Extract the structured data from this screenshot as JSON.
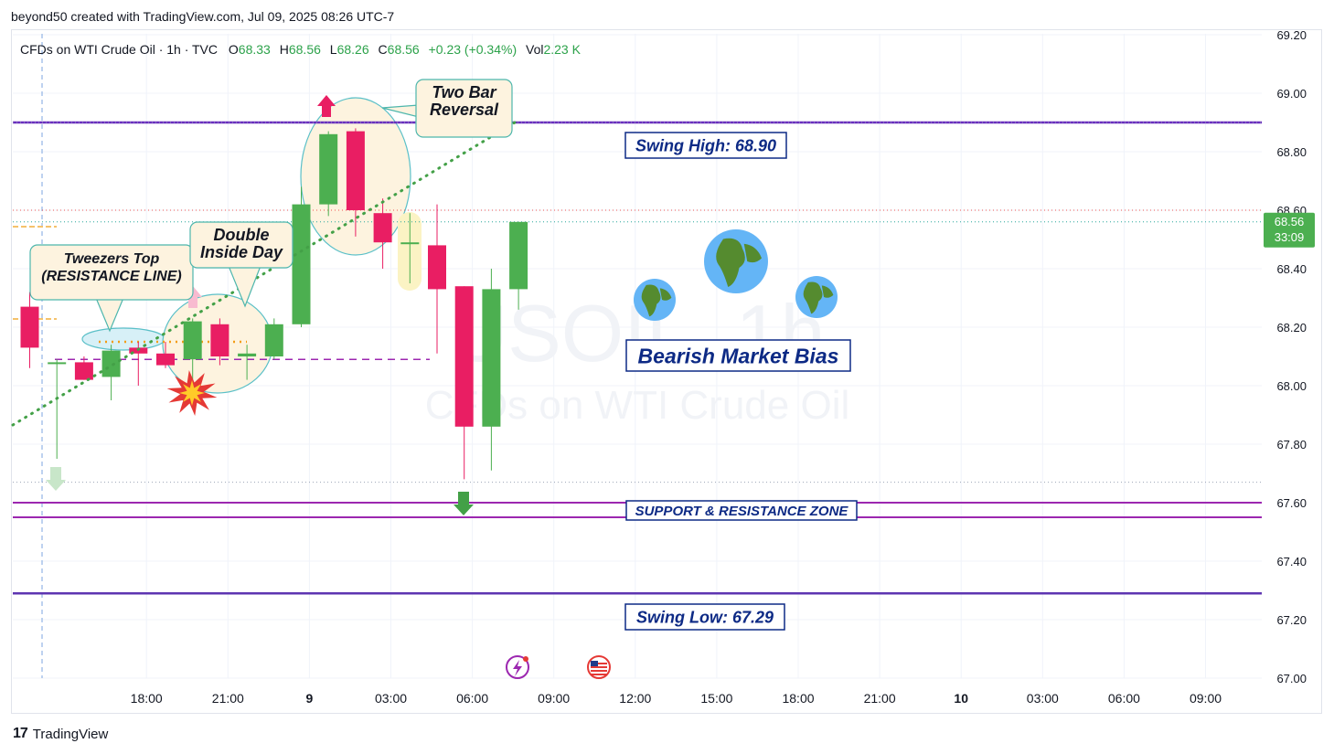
{
  "header": {
    "publisher": "beyond50 created with TradingView.com, Jul 09, 2025 08:26 UTC-7"
  },
  "legend": {
    "symbol": "CFDs on WTI Crude Oil · 1h · TVC",
    "o_label": "O",
    "o_value": "68.33",
    "h_label": "H",
    "h_value": "68.56",
    "l_label": "L",
    "l_value": "68.26",
    "c_label": "C",
    "c_value": "68.56",
    "change": "+0.23 (+0.34%)",
    "vol_label": "Vol",
    "vol_value": "2.23 K"
  },
  "watermark": {
    "symbol": "USOIL, 1h",
    "name": "CFDs on WTI Crude Oil"
  },
  "price_tag": {
    "price": "68.56",
    "countdown": "33:09"
  },
  "footer": {
    "brand": "TradingView",
    "logo": "17"
  },
  "annotations": {
    "tweezers": "Tweezers Top\n(RESISTANCE LINE)",
    "double_inside": "Double\nInside Day",
    "two_bar": "Two Bar\nReversal",
    "swing_high": "Swing High: 68.90",
    "bias": "Bearish Market Bias",
    "sr_zone": "SUPPORT & RESISTANCE ZONE",
    "swing_low": "Swing Low: 67.29"
  },
  "colors": {
    "up": "#4caf50",
    "down": "#e91e63",
    "purple": "#7b2fb5",
    "navy": "#0d2a85",
    "grid": "#f0f3fa"
  },
  "chart_data": {
    "type": "candlestick",
    "title": "CFDs on WTI Crude Oil · 1h · TVC",
    "ylim": [
      67.0,
      69.2
    ],
    "y_ticks": [
      "67.00",
      "67.20",
      "67.40",
      "67.60",
      "67.80",
      "68.00",
      "68.20",
      "68.40",
      "68.60",
      "68.80",
      "69.00",
      "69.20"
    ],
    "x_ticks": [
      {
        "i": 4.3,
        "label": "18:00"
      },
      {
        "i": 7.3,
        "label": "21:00"
      },
      {
        "i": 10.3,
        "label": "9"
      },
      {
        "i": 13.3,
        "label": "03:00"
      },
      {
        "i": 16.3,
        "label": "06:00"
      },
      {
        "i": 19.3,
        "label": "09:00"
      },
      {
        "i": 22.3,
        "label": "12:00"
      },
      {
        "i": 25.3,
        "label": "15:00"
      },
      {
        "i": 28.3,
        "label": "18:00"
      },
      {
        "i": 31.3,
        "label": "21:00"
      },
      {
        "i": 34.3,
        "label": "10"
      },
      {
        "i": 37.3,
        "label": "03:00"
      },
      {
        "i": 40.3,
        "label": "06:00"
      },
      {
        "i": 43.3,
        "label": "09:00"
      }
    ],
    "candles": [
      {
        "o": 68.27,
        "h": 68.32,
        "l": 68.06,
        "c": 68.13
      },
      {
        "o": 68.08,
        "h": 68.09,
        "l": 67.75,
        "c": 68.08
      },
      {
        "o": 68.08,
        "h": 68.1,
        "l": 68.02,
        "c": 68.02
      },
      {
        "o": 68.03,
        "h": 68.14,
        "l": 67.95,
        "c": 68.12
      },
      {
        "o": 68.13,
        "h": 68.15,
        "l": 68.0,
        "c": 68.11
      },
      {
        "o": 68.11,
        "h": 68.15,
        "l": 68.06,
        "c": 68.07
      },
      {
        "o": 68.09,
        "h": 68.23,
        "l": 68.02,
        "c": 68.22
      },
      {
        "o": 68.21,
        "h": 68.23,
        "l": 68.07,
        "c": 68.1
      },
      {
        "o": 68.1,
        "h": 68.14,
        "l": 68.02,
        "c": 68.11
      },
      {
        "o": 68.1,
        "h": 68.23,
        "l": 68.09,
        "c": 68.21
      },
      {
        "o": 68.21,
        "h": 68.68,
        "l": 68.2,
        "c": 68.62
      },
      {
        "o": 68.62,
        "h": 68.87,
        "l": 68.58,
        "c": 68.86
      },
      {
        "o": 68.87,
        "h": 68.88,
        "l": 68.51,
        "c": 68.6
      },
      {
        "o": 68.59,
        "h": 68.64,
        "l": 68.4,
        "c": 68.49
      },
      {
        "o": 68.49,
        "h": 68.59,
        "l": 68.35,
        "c": 68.49
      },
      {
        "o": 68.48,
        "h": 68.62,
        "l": 68.11,
        "c": 68.33
      },
      {
        "o": 68.34,
        "h": 68.34,
        "l": 67.68,
        "c": 67.86
      },
      {
        "o": 67.86,
        "h": 68.4,
        "l": 67.71,
        "c": 68.33
      },
      {
        "o": 68.33,
        "h": 68.56,
        "l": 68.26,
        "c": 68.56
      }
    ],
    "levels": {
      "swing_high": 68.9,
      "swing_low": 67.29,
      "sr_top": 67.6,
      "sr_bottom": 67.55,
      "dashed_support": 68.09,
      "last_price": 68.56
    }
  }
}
